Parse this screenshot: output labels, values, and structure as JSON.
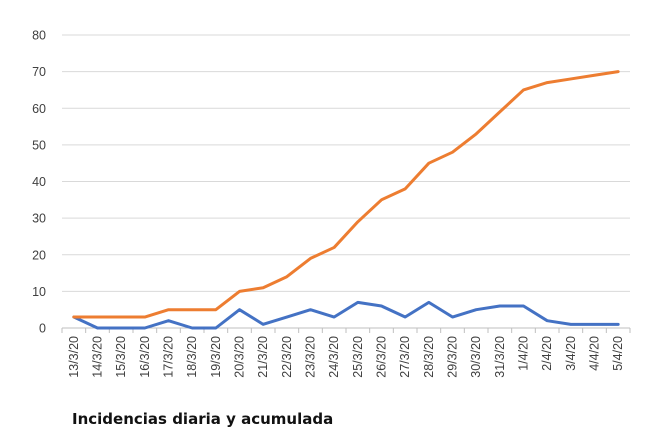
{
  "caption": "Incidencias diaria y acumulada",
  "chart_data": {
    "type": "line",
    "title": "",
    "xlabel": "",
    "ylabel": "",
    "categories": [
      "13/3/20",
      "14/3/20",
      "15/3/20",
      "16/3/20",
      "17/3/20",
      "18/3/20",
      "19/3/20",
      "20/3/20",
      "21/3/20",
      "22/3/20",
      "23/3/20",
      "24/3/20",
      "25/3/20",
      "26/3/20",
      "27/3/20",
      "28/3/20",
      "29/3/20",
      "30/3/20",
      "31/3/20",
      "1/4/20",
      "2/4/20",
      "3/4/20",
      "4/4/20",
      "5/4/20"
    ],
    "ylim": [
      0,
      80
    ],
    "yticks": [
      0,
      10,
      20,
      30,
      40,
      50,
      60,
      70,
      80
    ],
    "grid": true,
    "legend": "none",
    "series": [
      {
        "color": "#4472C4",
        "values": [
          3,
          0,
          0,
          0,
          2,
          0,
          0,
          5,
          1,
          3,
          5,
          3,
          7,
          6,
          3,
          7,
          3,
          5,
          6,
          6,
          2,
          1,
          1,
          1
        ]
      },
      {
        "color": "#ED7D31",
        "values": [
          3,
          3,
          3,
          3,
          5,
          5,
          5,
          10,
          11,
          14,
          19,
          22,
          29,
          35,
          38,
          45,
          48,
          53,
          59,
          65,
          67,
          68,
          69,
          70
        ]
      }
    ]
  }
}
